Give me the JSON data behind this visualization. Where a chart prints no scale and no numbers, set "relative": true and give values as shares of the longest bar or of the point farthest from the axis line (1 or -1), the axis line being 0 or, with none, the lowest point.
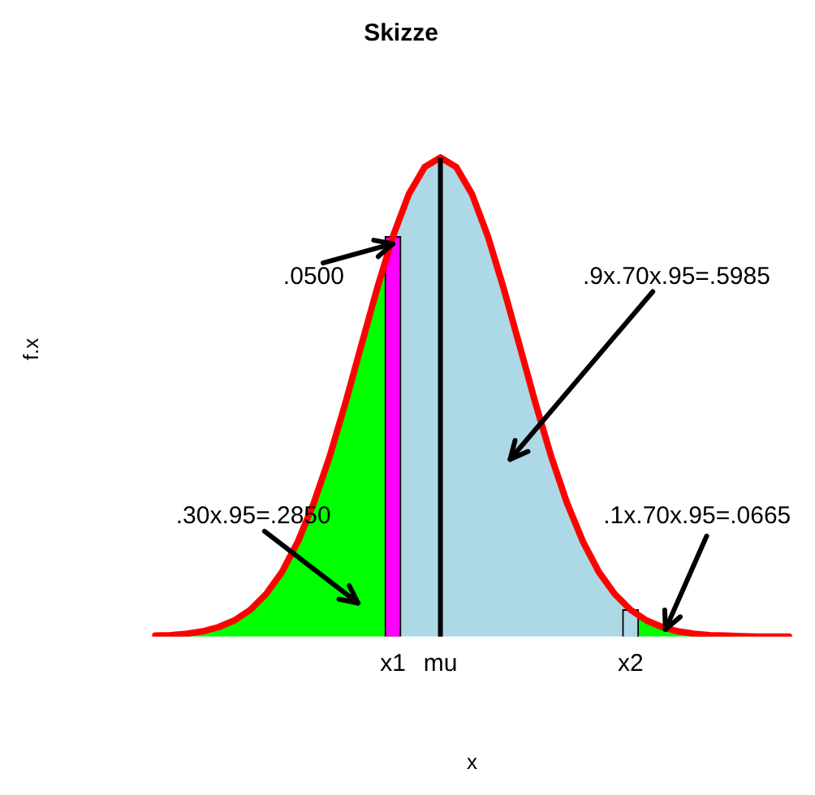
{
  "chart_data": {
    "type": "area",
    "title": "Skizze",
    "xlabel": "x",
    "ylabel": "f.x",
    "relative": true,
    "legend": false,
    "grid": false,
    "marker": "none",
    "tick_labels": "x",
    "categories": [
      null,
      null,
      null,
      null,
      null,
      null,
      null,
      null,
      null,
      null,
      null,
      null,
      null,
      null,
      null,
      "x1",
      null,
      null,
      "mu",
      null,
      null,
      null,
      null,
      null,
      null,
      null,
      null,
      null,
      null,
      null,
      "x2",
      null,
      null,
      null,
      null,
      null,
      null,
      null,
      null,
      null,
      null
    ],
    "series": [
      {
        "color": "#00ff00",
        "values": [
          0.002,
          0.003,
          0.006,
          0.011,
          0.02,
          0.034,
          0.056,
          0.089,
          0.135,
          0.198,
          0.278,
          0.375,
          0.487,
          0.607,
          0.726,
          0.835,
          null,
          null,
          null,
          null,
          null,
          null,
          null,
          null,
          null,
          null,
          null,
          null,
          null,
          null,
          null,
          null,
          null,
          null,
          null,
          null,
          null,
          null,
          null,
          null,
          null
        ]
      },
      {
        "color": "#add8e6",
        "values": [
          null,
          null,
          null,
          null,
          null,
          null,
          null,
          null,
          null,
          null,
          null,
          null,
          null,
          null,
          null,
          0.835,
          0.923,
          0.98,
          1,
          0.98,
          0.923,
          0.835,
          0.726,
          0.607,
          0.487,
          0.375,
          0.278,
          0.198,
          0.135,
          0.089,
          0.056,
          null,
          null,
          null,
          null,
          null,
          null,
          null,
          null,
          null,
          null
        ]
      },
      {
        "color": "#00ff00",
        "values": [
          null,
          null,
          null,
          null,
          null,
          null,
          null,
          null,
          null,
          null,
          null,
          null,
          null,
          null,
          null,
          null,
          null,
          null,
          null,
          null,
          null,
          null,
          null,
          null,
          null,
          null,
          null,
          null,
          null,
          null,
          0.056,
          0.034,
          0.02,
          0.011,
          0.006,
          0.003,
          0.002,
          0.001,
          0,
          0,
          0
        ]
      },
      {
        "type": "bar",
        "color": "#ff00ff",
        "values": [
          null,
          null,
          null,
          null,
          null,
          null,
          null,
          null,
          null,
          null,
          null,
          null,
          null,
          null,
          null,
          0.835,
          null,
          null,
          null,
          null,
          null,
          null,
          null,
          null,
          null,
          null,
          null,
          null,
          null,
          null,
          null,
          null,
          null,
          null,
          null,
          null,
          null,
          null,
          null,
          null,
          null
        ]
      },
      {
        "type": "bar",
        "color": "#add8e6",
        "values": [
          null,
          null,
          null,
          null,
          null,
          null,
          null,
          null,
          null,
          null,
          null,
          null,
          null,
          null,
          null,
          null,
          null,
          null,
          null,
          null,
          null,
          null,
          null,
          null,
          null,
          null,
          null,
          null,
          null,
          null,
          0.056,
          null,
          null,
          null,
          null,
          null,
          null,
          null,
          null,
          null,
          null
        ]
      },
      {
        "type": "line",
        "color": "#ff0000",
        "values": [
          0.002,
          0.003,
          0.006,
          0.011,
          0.02,
          0.034,
          0.056,
          0.089,
          0.135,
          0.198,
          0.278,
          0.375,
          0.487,
          0.607,
          0.726,
          0.835,
          0.923,
          0.98,
          1,
          0.98,
          0.923,
          0.835,
          0.726,
          0.607,
          0.487,
          0.375,
          0.278,
          0.198,
          0.135,
          0.089,
          0.056,
          0.034,
          0.02,
          0.011,
          0.006,
          0.003,
          0.002,
          0.001,
          0,
          0,
          0
        ]
      }
    ],
    "ref_lines": [
      {
        "axis": "x",
        "value": "mu",
        "color": "#000000"
      }
    ],
    "annotations": [
      ".0500",
      ".9x.70x.95=.5985",
      ".30x.95=.2850",
      ".1x.70x.95=.0665"
    ]
  }
}
